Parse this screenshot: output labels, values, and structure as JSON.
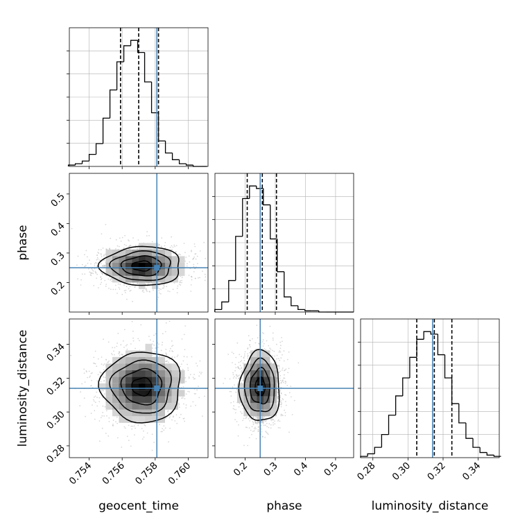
{
  "figure": {
    "type": "corner_plot",
    "parameters": [
      "geocent_time",
      "phase",
      "luminosity_distance"
    ],
    "truth_color": "#4682b4",
    "histogram_color": "#000000",
    "scatter_color": "#bdbdbd"
  },
  "chart_data": [
    {
      "type": "histogram",
      "parameter": "geocent_time",
      "xlim": [
        0.7528,
        0.7612
      ],
      "bins": [
        0.75295,
        0.75337,
        0.75379,
        0.75421,
        0.75463,
        0.75505,
        0.75547,
        0.75589,
        0.75631,
        0.75673,
        0.75715,
        0.75757,
        0.75799,
        0.75841,
        0.75883,
        0.75925,
        0.75967,
        0.76009,
        0.76051,
        0.76093
      ],
      "counts": [
        1,
        2,
        4,
        9,
        17,
        36,
        57,
        78,
        90,
        94,
        85,
        63,
        40,
        19,
        10,
        5,
        2,
        1,
        0,
        0
      ],
      "quantiles": [
        0.7559,
        0.757,
        0.7582
      ],
      "truth": 0.7581,
      "tick_labels": [
        "0.754",
        "0.756",
        "0.758",
        "0.760"
      ],
      "grid": true
    },
    {
      "type": "histogram",
      "parameter": "phase",
      "xlim": [
        0.1,
        0.56
      ],
      "bins": [
        0.111,
        0.134,
        0.157,
        0.18,
        0.203,
        0.226,
        0.249,
        0.272,
        0.295,
        0.318,
        0.341,
        0.364,
        0.387,
        0.41,
        0.433,
        0.456,
        0.479,
        0.502,
        0.525,
        0.548
      ],
      "counts": [
        2,
        8,
        25,
        60,
        90,
        100,
        98,
        85,
        58,
        32,
        12,
        5,
        2,
        1,
        1,
        0,
        0,
        0,
        0,
        0
      ],
      "quantiles": [
        0.207,
        0.257,
        0.304
      ],
      "truth": 0.25,
      "tick_labels": [
        "0.2",
        "0.3",
        "0.4",
        "0.5"
      ],
      "grid": true
    },
    {
      "type": "histogram",
      "parameter": "luminosity_distance",
      "xlim": [
        0.273,
        0.352
      ],
      "bins": [
        0.275,
        0.279,
        0.283,
        0.287,
        0.291,
        0.295,
        0.299,
        0.303,
        0.307,
        0.311,
        0.315,
        0.319,
        0.323,
        0.327,
        0.331,
        0.335,
        0.339,
        0.343,
        0.347,
        0.351
      ],
      "counts": [
        1,
        3,
        8,
        18,
        33,
        48,
        62,
        78,
        92,
        98,
        96,
        80,
        62,
        42,
        27,
        15,
        8,
        4,
        2,
        1
      ],
      "quantiles": [
        0.305,
        0.315,
        0.325
      ],
      "truth": 0.314,
      "tick_labels": [
        "0.28",
        "0.30",
        "0.32",
        "0.34"
      ],
      "grid": true
    },
    {
      "type": "2d_density_contour",
      "x_parameter": "geocent_time",
      "y_parameter": "phase",
      "xlim": [
        0.7528,
        0.7612
      ],
      "ylim": [
        0.1,
        0.57
      ],
      "peak": [
        0.7572,
        0.256
      ],
      "contour_levels": [
        0.5,
        1.0,
        1.5,
        2.0
      ],
      "spread": [
        0.0011,
        0.03
      ],
      "truth": [
        0.7581,
        0.25
      ],
      "x_tick_labels": [
        "0.754",
        "0.756",
        "0.758",
        "0.760"
      ],
      "y_tick_labels": [
        "0.2",
        "0.3",
        "0.4",
        "0.5"
      ]
    },
    {
      "type": "2d_density_contour",
      "x_parameter": "geocent_time",
      "y_parameter": "luminosity_distance",
      "xlim": [
        0.7528,
        0.7612
      ],
      "ylim": [
        0.273,
        0.355
      ],
      "peak": [
        0.7572,
        0.315
      ],
      "contour_levels": [
        0.5,
        1.0,
        1.5,
        2.0
      ],
      "spread": [
        0.0011,
        0.0095
      ],
      "truth": [
        0.7581,
        0.314
      ],
      "x_tick_labels": [
        "0.754",
        "0.756",
        "0.758",
        "0.760"
      ],
      "y_tick_labels": [
        "0.28",
        "0.30",
        "0.32",
        "0.34"
      ]
    },
    {
      "type": "2d_density_contour",
      "x_parameter": "phase",
      "y_parameter": "luminosity_distance",
      "xlim": [
        0.1,
        0.56
      ],
      "ylim": [
        0.273,
        0.355
      ],
      "peak": [
        0.25,
        0.315
      ],
      "contour_levels": [
        0.5,
        1.0,
        1.5,
        2.0
      ],
      "spread": [
        0.03,
        0.0095
      ],
      "truth": [
        0.25,
        0.314
      ],
      "x_tick_labels": [
        "0.2",
        "0.3",
        "0.4",
        "0.5"
      ],
      "y_tick_labels": [
        "0.28",
        "0.30",
        "0.32",
        "0.34"
      ]
    }
  ]
}
